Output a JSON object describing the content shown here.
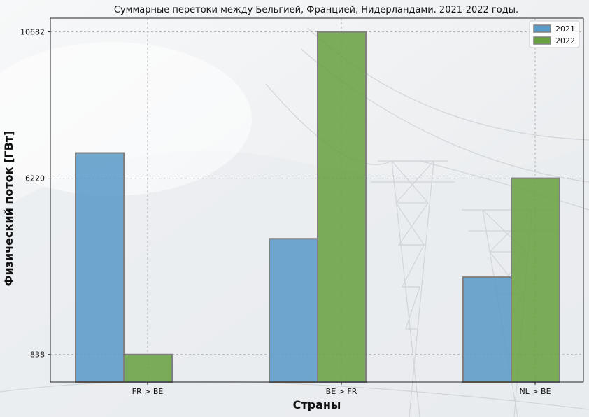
{
  "chart_data": {
    "type": "bar",
    "title": "Суммарные перетоки между Бельгией, Францией, Нидерландами. 2021-2022 годы.",
    "xlabel": "Страны",
    "ylabel": "Физический поток [ГВт]",
    "categories": [
      "FR > BE",
      "BE > FR",
      "NL > BE"
    ],
    "series": [
      {
        "name": "2021",
        "values": [
          6990,
          4370,
          3200
        ],
        "color": "#5b9bc8"
      },
      {
        "name": "2022",
        "values": [
          838,
          10682,
          6220
        ],
        "color": "#6aa243"
      }
    ],
    "yticks": [
      838,
      6220,
      10682
    ],
    "ytick_labels": [
      "838",
      "6220",
      "10682"
    ],
    "ylim": [
      0,
      11100
    ],
    "grid": true,
    "legend_position": "top-right",
    "bar_edge_color": "#808080"
  }
}
